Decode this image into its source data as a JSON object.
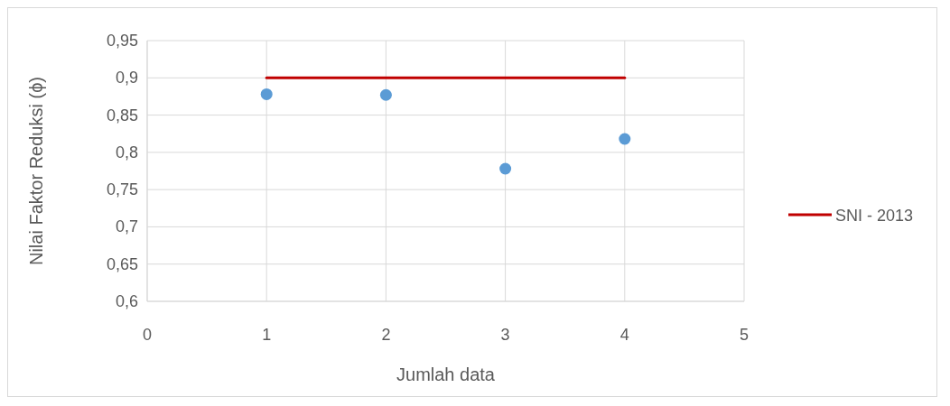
{
  "chart_data": {
    "type": "scatter",
    "xlabel": "Jumlah data",
    "ylabel": "Nilai Faktor Reduksi (ϕ)",
    "xlim": [
      0,
      5
    ],
    "xticks": [
      0,
      1,
      2,
      3,
      4,
      5
    ],
    "ylim": [
      0.6,
      0.95
    ],
    "yticks": [
      {
        "value": 0.6,
        "label": "0,6"
      },
      {
        "value": 0.65,
        "label": "0,65"
      },
      {
        "value": 0.7,
        "label": "0,7"
      },
      {
        "value": 0.75,
        "label": "0,75"
      },
      {
        "value": 0.8,
        "label": "0,8"
      },
      {
        "value": 0.85,
        "label": "0,85"
      },
      {
        "value": 0.9,
        "label": "0,9"
      },
      {
        "value": 0.95,
        "label": "0,95"
      }
    ],
    "grid": true,
    "legend": "right",
    "series": [
      {
        "marker": "circle",
        "color": "#5b9bd5",
        "x": [
          1,
          2,
          3,
          4
        ],
        "values": [
          0.878,
          0.877,
          0.778,
          0.818
        ]
      },
      {
        "type": "line",
        "marker": "none",
        "name": "SNI - 2013",
        "color": "#c00000",
        "x": [
          1,
          4
        ],
        "values": [
          0.9,
          0.9
        ]
      }
    ]
  }
}
